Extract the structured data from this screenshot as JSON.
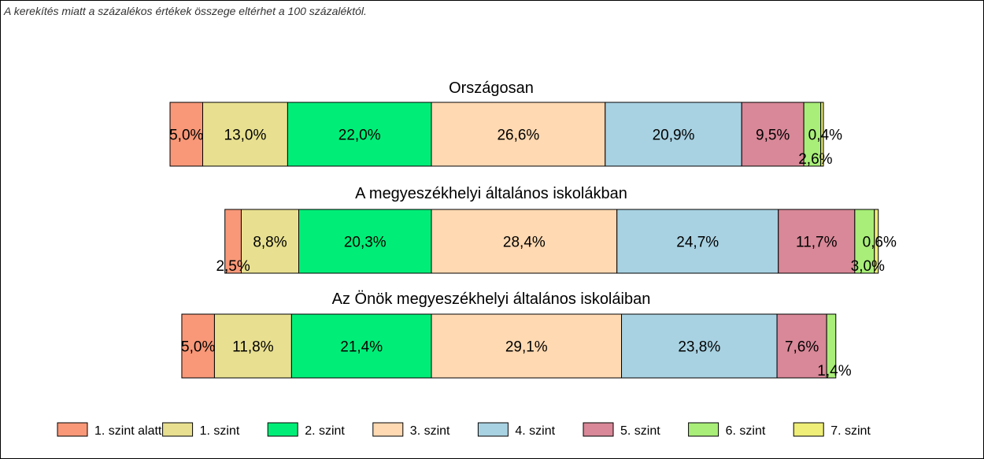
{
  "note": "A kerekítés miatt a  százalékos értékek összege eltérhet a 100 százaléktól.",
  "colors": [
    "#F89878",
    "#E8E090",
    "#00EE78",
    "#FFD9B2",
    "#A8D2E2",
    "#D88898",
    "#A8EE78",
    "#EEEE78"
  ],
  "chart_data": {
    "type": "bar",
    "orientation": "horizontal",
    "stacked": true,
    "categories": [
      "1. szint alatti",
      "1. szint",
      "2. szint",
      "3. szint",
      "4. szint",
      "5. szint",
      "6. szint",
      "7. szint"
    ],
    "rows": [
      {
        "title": "Országosan",
        "values": [
          5.0,
          13.0,
          22.0,
          26.6,
          20.9,
          9.5,
          2.6,
          0.4
        ],
        "labels": [
          "5,0%",
          "13,0%",
          "22,0%",
          "26,6%",
          "20,9%",
          "9,5%",
          "2,6%",
          "0,4%"
        ]
      },
      {
        "title": "A megyeszékhelyi általános iskolákban",
        "values": [
          2.5,
          8.8,
          20.3,
          28.4,
          24.7,
          11.7,
          3.0,
          0.6
        ],
        "labels": [
          "2,5%",
          "8,8%",
          "20,3%",
          "28,4%",
          "24,7%",
          "11,7%",
          "3,0%",
          "0,6%"
        ]
      },
      {
        "title": "Az Önök megyeszékhelyi általános iskoláiban",
        "values": [
          5.0,
          11.8,
          21.4,
          29.1,
          23.8,
          7.6,
          1.4,
          0.0
        ],
        "labels": [
          "5,0%",
          "11,8%",
          "21,4%",
          "29,1%",
          "23,8%",
          "7,6%",
          "1,4%",
          ""
        ]
      }
    ],
    "legend": "bottom"
  }
}
